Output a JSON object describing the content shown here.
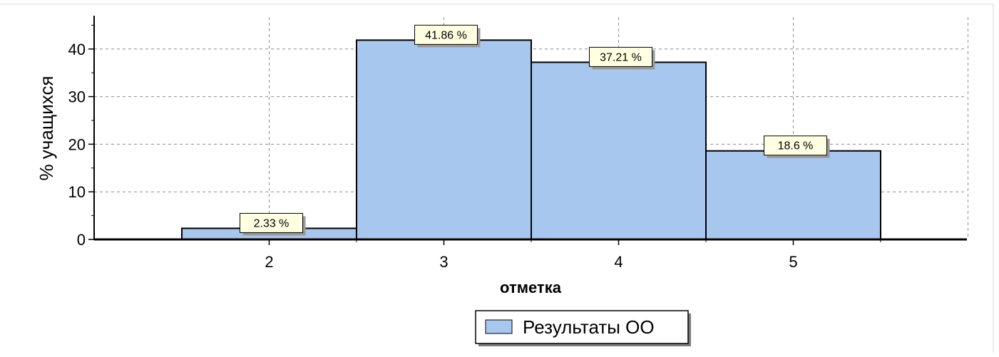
{
  "chart_data": {
    "type": "bar",
    "categories": [
      "2",
      "3",
      "4",
      "5"
    ],
    "values": [
      2.33,
      41.86,
      37.21,
      18.6
    ],
    "value_labels": [
      "2.33 %",
      "41.86 %",
      "37.21 %",
      "18.6 %"
    ],
    "title": "",
    "xlabel": "отметка",
    "ylabel": "% учащихся",
    "ylim": [
      0,
      47
    ],
    "yticks": [
      "0",
      "10",
      "20",
      "30",
      "40"
    ],
    "ytick_values": [
      0,
      10,
      20,
      30,
      40
    ],
    "grid": true,
    "legend_placement": "bottom-center",
    "series": [
      {
        "name": "Результаты ОО",
        "values": [
          2.33,
          41.86,
          37.21,
          18.6
        ]
      }
    ],
    "colors": {
      "bar_fill": "#a7c7ef",
      "bar_stroke": "#000000",
      "label_bg": "#ffffe1",
      "shadow": "#9a9a9a",
      "grid": "#8c8c8c"
    }
  }
}
